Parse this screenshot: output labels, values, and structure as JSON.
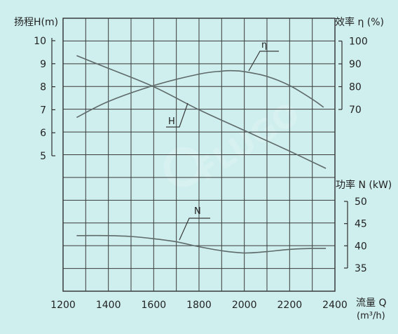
{
  "chart_data": {
    "type": "line",
    "x": {
      "label": "流量 Q",
      "unit": "(m³/h)",
      "range": [
        1200,
        2400
      ],
      "ticks": [
        1200,
        1400,
        1600,
        1800,
        2000,
        2200,
        2400
      ]
    },
    "axes": {
      "head": {
        "label": "扬程H(m)",
        "range": [
          5,
          10
        ],
        "ticks": [
          5,
          6,
          7,
          8,
          9,
          10
        ]
      },
      "efficiency": {
        "label": "效率 η (%)",
        "range": [
          70,
          100
        ],
        "ticks": [
          70,
          80,
          90,
          100
        ]
      },
      "power": {
        "label": "功率 N (kW)",
        "range": [
          35,
          50
        ],
        "ticks": [
          35,
          40,
          45,
          50
        ]
      }
    },
    "series": [
      {
        "name": "H",
        "axis": "head",
        "color": "#5f6a6a",
        "points": [
          [
            1260,
            9.35
          ],
          [
            1400,
            8.8
          ],
          [
            1600,
            8.0
          ],
          [
            1800,
            7.0
          ],
          [
            2000,
            6.1
          ],
          [
            2200,
            5.2
          ],
          [
            2360,
            4.45
          ]
        ]
      },
      {
        "name": "η",
        "axis": "efficiency",
        "color": "#5f6a6a",
        "points": [
          [
            1260,
            66.5
          ],
          [
            1400,
            73.5
          ],
          [
            1600,
            80.5
          ],
          [
            1800,
            85.5
          ],
          [
            1900,
            86.8
          ],
          [
            1950,
            87.0
          ],
          [
            2000,
            86.6
          ],
          [
            2100,
            84.5
          ],
          [
            2200,
            80.5
          ],
          [
            2300,
            74.5
          ],
          [
            2350,
            71.0
          ]
        ]
      },
      {
        "name": "N",
        "axis": "power",
        "color": "#5f6a6a",
        "points": [
          [
            1260,
            42.3
          ],
          [
            1400,
            42.3
          ],
          [
            1500,
            42.1
          ],
          [
            1600,
            41.6
          ],
          [
            1700,
            40.9
          ],
          [
            1800,
            39.8
          ],
          [
            1900,
            38.9
          ],
          [
            2000,
            38.4
          ],
          [
            2100,
            38.7
          ],
          [
            2200,
            39.2
          ],
          [
            2300,
            39.4
          ],
          [
            2360,
            39.4
          ]
        ]
      }
    ],
    "grid": true,
    "legend": "inline labels on curves",
    "watermark": "FLUGO"
  }
}
